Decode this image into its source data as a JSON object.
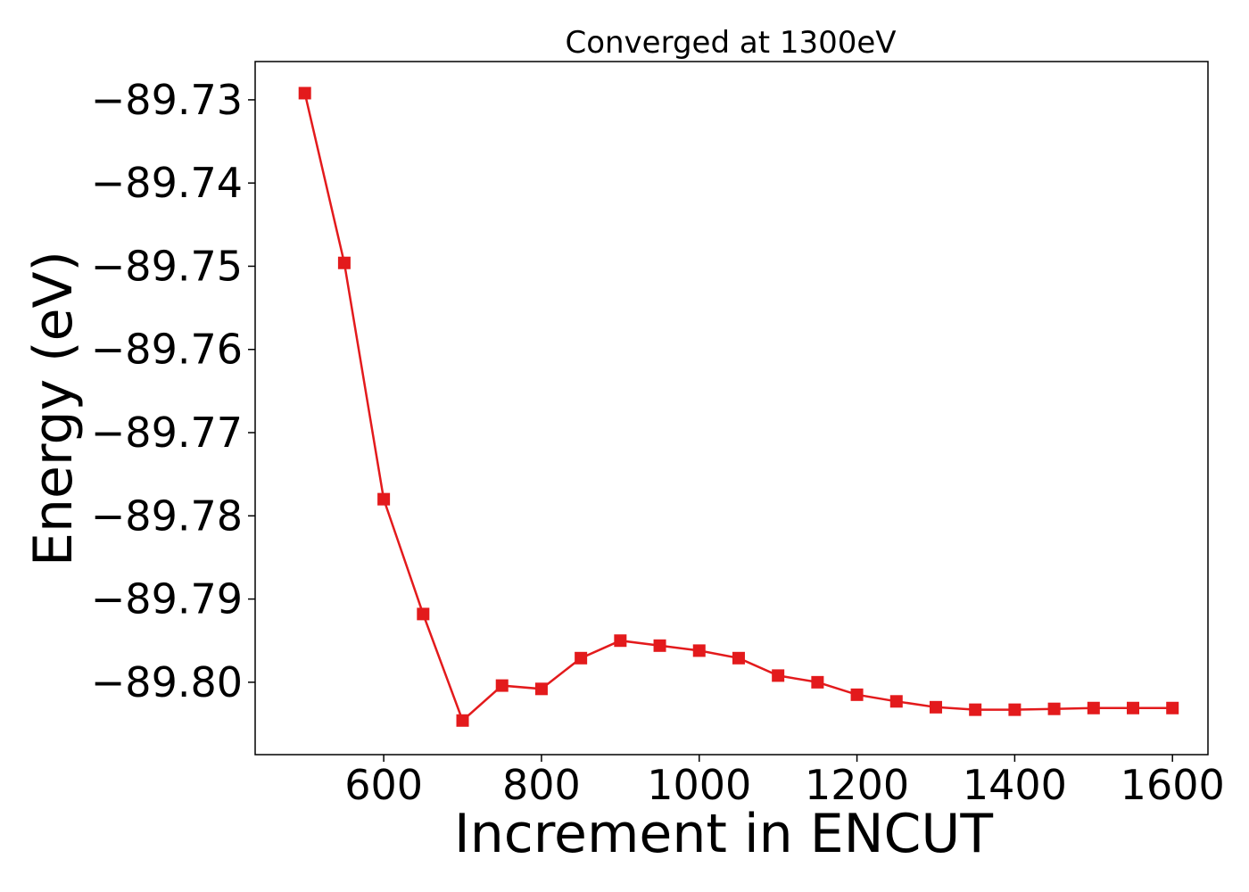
{
  "chart_data": {
    "type": "line",
    "title": "Converged at 1300eV",
    "xlabel": "Increment in ENCUT",
    "ylabel": "Energy (eV)",
    "xlim": [
      437,
      1645
    ],
    "ylim": [
      -89.8087,
      -89.7254
    ],
    "x_ticks": [
      600,
      800,
      1000,
      1200,
      1400,
      1600
    ],
    "y_ticks": [
      -89.73,
      -89.74,
      -89.75,
      -89.76,
      -89.77,
      -89.78,
      -89.79,
      -89.8
    ],
    "y_tick_labels": [
      "−89.73",
      "−89.74",
      "−89.75",
      "−89.76",
      "−89.77",
      "−89.78",
      "−89.79",
      "−89.80"
    ],
    "grid": false,
    "legend": "none",
    "series": [
      {
        "color": "#e31a1c",
        "marker": "square",
        "x": [
          500,
          550,
          600,
          650,
          700,
          750,
          800,
          850,
          900,
          950,
          1000,
          1050,
          1100,
          1150,
          1200,
          1250,
          1300,
          1350,
          1400,
          1450,
          1500,
          1550,
          1600
        ],
        "y": [
          -89.7292,
          -89.7496,
          -89.778,
          -89.7918,
          -89.8046,
          -89.8004,
          -89.8008,
          -89.7971,
          -89.795,
          -89.7956,
          -89.7962,
          -89.7971,
          -89.7992,
          -89.8,
          -89.8015,
          -89.8023,
          -89.803,
          -89.8033,
          -89.8033,
          -89.8032,
          -89.8031,
          -89.8031,
          -89.8031
        ]
      }
    ]
  }
}
